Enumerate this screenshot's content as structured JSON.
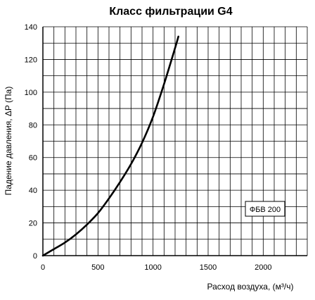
{
  "chart_data": {
    "type": "line",
    "title": "Класс фильтрации G4",
    "xlabel": "Расход воздуха, (м³/ч)",
    "ylabel": "Падение давления, ΔP (Па)",
    "xlim": [
      0,
      2400
    ],
    "ylim": [
      0,
      140
    ],
    "x_ticks": [
      0,
      500,
      1000,
      1500,
      2000
    ],
    "y_ticks": [
      0,
      20,
      40,
      60,
      80,
      100,
      120,
      140
    ],
    "x_tick_labels": [
      "0",
      "500",
      "1000",
      "1500",
      "2000"
    ],
    "y_tick_labels": [
      "0",
      "20",
      "40",
      "60",
      "80",
      "100",
      "120",
      "140"
    ],
    "x_grid_step": 100,
    "y_grid_step": 10,
    "grid": true,
    "legend_position": "right-middle",
    "series": [
      {
        "name": "ФБВ 200",
        "color": "#000000",
        "x": [
          0,
          100,
          200,
          300,
          400,
          500,
          600,
          700,
          800,
          900,
          1000,
          1100,
          1200,
          1230
        ],
        "y": [
          0,
          4,
          8,
          13,
          19,
          26,
          35,
          45,
          56,
          69,
          85,
          105,
          127,
          134
        ]
      }
    ]
  }
}
